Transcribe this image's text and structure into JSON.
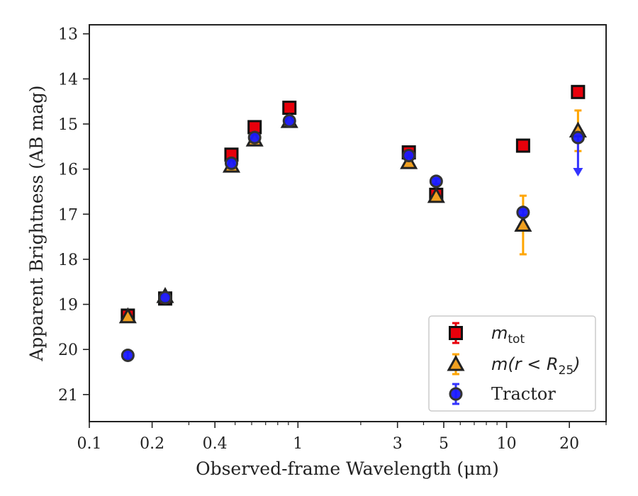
{
  "chart_data": {
    "type": "scatter",
    "xlabel": "Observed-frame Wavelength (μm)",
    "ylabel": "Apparent Brightness (AB mag)",
    "xscale": "log",
    "xlim": [
      0.1,
      30
    ],
    "ylim": [
      21.6,
      12.8
    ],
    "y_inverted": true,
    "xticks": [
      0.1,
      0.2,
      0.4,
      1,
      3,
      5,
      10,
      20
    ],
    "xtick_labels": [
      "0.1",
      "0.2",
      "0.4",
      "1",
      "3",
      "5",
      "10",
      "20"
    ],
    "yticks": [
      13,
      14,
      15,
      16,
      17,
      18,
      19,
      20,
      21
    ],
    "ytick_labels": [
      "13",
      "14",
      "15",
      "16",
      "17",
      "18",
      "19",
      "20",
      "21"
    ],
    "legend_placement": "lower-right",
    "series": [
      {
        "name": "m_tot",
        "label_main": "m",
        "label_sub": "tot",
        "marker": "square",
        "color": "#e8000b",
        "errcolor": "#e8000b",
        "points": [
          {
            "x": 0.153,
            "y": 19.25,
            "yerr": 0.08
          },
          {
            "x": 0.231,
            "y": 18.87,
            "yerr": 0.06
          },
          {
            "x": 0.48,
            "y": 15.68,
            "yerr": 0.05
          },
          {
            "x": 0.62,
            "y": 15.07,
            "yerr": 0.05
          },
          {
            "x": 0.91,
            "y": 14.64,
            "yerr": 0.05
          },
          {
            "x": 3.4,
            "y": 15.63,
            "yerr": 0.05
          },
          {
            "x": 4.6,
            "y": 16.57,
            "yerr": 0.06
          },
          {
            "x": 12.0,
            "y": 15.48,
            "yerr": 0.05
          },
          {
            "x": 22.0,
            "y": 14.29,
            "yerr": 0.05
          }
        ]
      },
      {
        "name": "m(r<R25)",
        "label_main": "m(r < R",
        "label_sub": "25",
        "label_tail": ")",
        "marker": "triangle",
        "color": "#f0a020",
        "errcolor": "#ffa500",
        "points": [
          {
            "x": 0.153,
            "y": 19.27,
            "yerr": 0.08
          },
          {
            "x": 0.231,
            "y": 18.82,
            "yerr": 0.06
          },
          {
            "x": 0.48,
            "y": 15.93,
            "yerr": 0.05
          },
          {
            "x": 0.62,
            "y": 15.35,
            "yerr": 0.05
          },
          {
            "x": 0.91,
            "y": 14.94,
            "yerr": 0.05
          },
          {
            "x": 3.4,
            "y": 15.85,
            "yerr": 0.05
          },
          {
            "x": 4.6,
            "y": 16.6,
            "yerr": 0.06
          },
          {
            "x": 12.0,
            "y": 17.24,
            "yerr": 0.65
          },
          {
            "x": 22.0,
            "y": 15.15,
            "yerr": 0.45
          }
        ]
      },
      {
        "name": "Tractor",
        "label_main": "Tractor",
        "marker": "circle",
        "color": "#1a1aff",
        "errcolor": "#3333ff",
        "points": [
          {
            "x": 0.153,
            "y": 20.13,
            "yerr": 0.08
          },
          {
            "x": 0.231,
            "y": 18.85,
            "yerr": 0.06
          },
          {
            "x": 0.48,
            "y": 15.87,
            "yerr": 0.05
          },
          {
            "x": 0.62,
            "y": 15.3,
            "yerr": 0.05
          },
          {
            "x": 0.91,
            "y": 14.93,
            "yerr": 0.05
          },
          {
            "x": 3.4,
            "y": 15.7,
            "yerr": 0.05
          },
          {
            "x": 4.6,
            "y": 16.27,
            "yerr": 0.06
          },
          {
            "x": 12.0,
            "y": 16.96,
            "yerr": 0.06
          },
          {
            "x": 22.0,
            "y": 15.3,
            "yerr": 0.0,
            "upper_limit_to": 16.1
          }
        ]
      }
    ]
  }
}
